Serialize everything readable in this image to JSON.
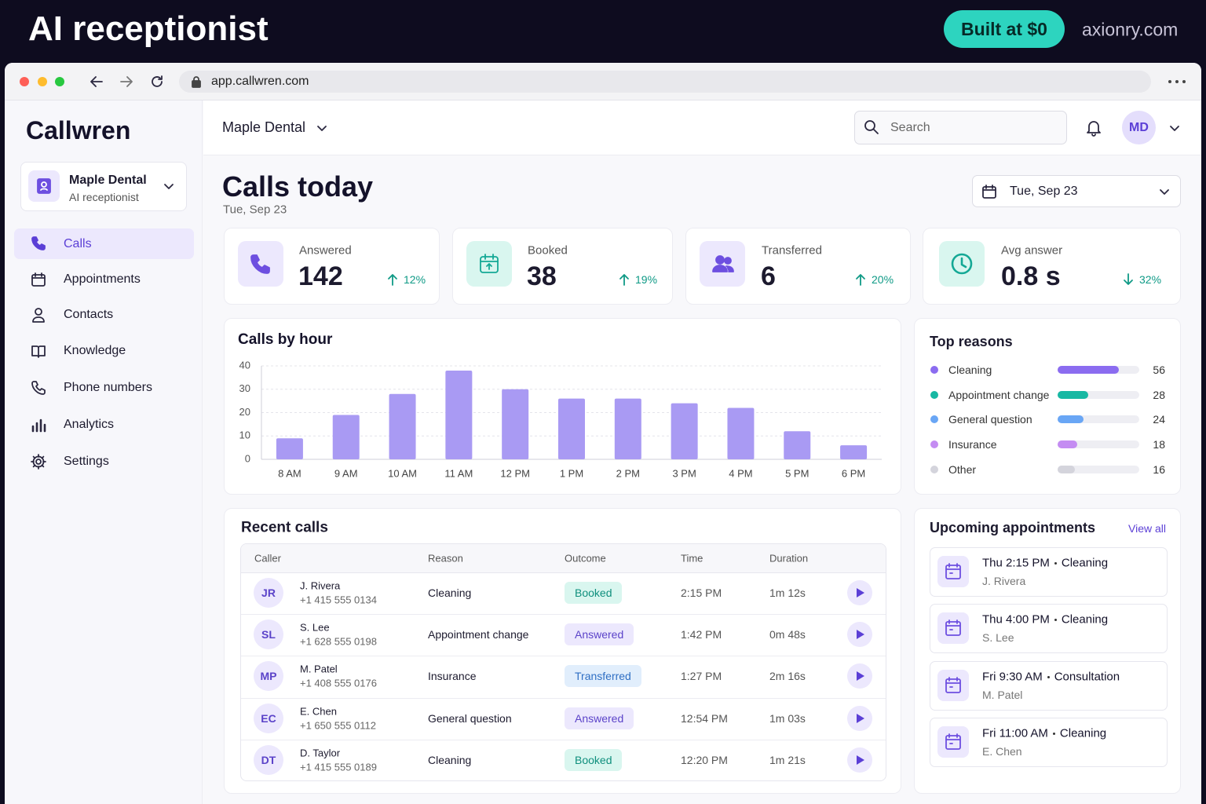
{
  "banner": {
    "title": "AI receptionist",
    "badge": "Built at $0",
    "site": "axionry.com"
  },
  "browser": {
    "url": "app.callwren.com"
  },
  "sidebar": {
    "brand": "Callwren",
    "workspace": {
      "name": "Maple Dental",
      "role": "AI receptionist"
    },
    "nav": [
      "Calls",
      "Appointments",
      "Contacts",
      "Knowledge",
      "Phone numbers",
      "Analytics",
      "Settings"
    ]
  },
  "topbar": {
    "account": "Maple Dental",
    "search_placeholder": "Search",
    "avatar": "MD"
  },
  "header": {
    "title": "Calls today",
    "date": "Tue, Sep 23",
    "date_picker": "Tue, Sep 23"
  },
  "stats": [
    {
      "label": "Answered",
      "value": "142",
      "change": "12%"
    },
    {
      "label": "Booked",
      "value": "38",
      "change": "19%"
    },
    {
      "label": "Transferred",
      "value": "6",
      "change": "20%"
    },
    {
      "label": "Avg answer",
      "value": "0.8 s",
      "change": "32%"
    }
  ],
  "chart_data": {
    "type": "bar",
    "title": "Calls by hour",
    "categories": [
      "8 AM",
      "9 AM",
      "10 AM",
      "11 AM",
      "12 PM",
      "1 PM",
      "2 PM",
      "3 PM",
      "4 PM",
      "5 PM",
      "6 PM"
    ],
    "values": [
      9,
      19,
      28,
      38,
      30,
      26,
      26,
      24,
      22,
      12,
      6
    ],
    "color": "#a99af3",
    "ylim": [
      0,
      40
    ],
    "yticks": [
      0,
      10,
      20,
      30,
      40
    ],
    "grid": true
  },
  "top_reasons": {
    "title": "Top reasons",
    "xlim": [
      0,
      75
    ],
    "items": [
      {
        "name": "Cleaning",
        "value": 56,
        "color": "#8b6cf0"
      },
      {
        "name": "Appointment change",
        "value": 28,
        "color": "#17b8a3"
      },
      {
        "name": "General question",
        "value": 24,
        "color": "#69a6f5"
      },
      {
        "name": "Insurance",
        "value": 18,
        "color": "#c48cf2"
      },
      {
        "name": "Other",
        "value": 16,
        "color": "#d4d4dc"
      }
    ]
  },
  "recent_calls": {
    "title": "Recent calls",
    "columns": [
      "Caller",
      "Reason",
      "Outcome",
      "Time",
      "Duration"
    ],
    "rows": [
      {
        "initials": "JR",
        "name": "J. Rivera",
        "phone": "+1 415 555 0134",
        "reason": "Cleaning",
        "outcome": "Booked",
        "tone": "teal",
        "time": "2:15 PM",
        "duration": "1m 12s"
      },
      {
        "initials": "SL",
        "name": "S. Lee",
        "phone": "+1 628 555 0198",
        "reason": "Appointment change",
        "outcome": "Answered",
        "tone": "purple",
        "time": "1:42 PM",
        "duration": "0m 48s"
      },
      {
        "initials": "MP",
        "name": "M. Patel",
        "phone": "+1 408 555 0176",
        "reason": "Insurance",
        "outcome": "Transferred",
        "tone": "blue",
        "time": "1:27 PM",
        "duration": "2m 16s"
      },
      {
        "initials": "EC",
        "name": "E. Chen",
        "phone": "+1 650 555 0112",
        "reason": "General question",
        "outcome": "Answered",
        "tone": "purple",
        "time": "12:54 PM",
        "duration": "1m 03s"
      },
      {
        "initials": "DT",
        "name": "D. Taylor",
        "phone": "+1 415 555 0189",
        "reason": "Cleaning",
        "outcome": "Booked",
        "tone": "teal",
        "time": "12:20 PM",
        "duration": "1m 21s"
      }
    ]
  },
  "upcoming": {
    "title": "Upcoming appointments",
    "link": "View all",
    "items": [
      {
        "when": "Thu 2:15 PM",
        "service": "Cleaning",
        "patient": "J. Rivera"
      },
      {
        "when": "Thu 4:00 PM",
        "service": "Cleaning",
        "patient": "S. Lee"
      },
      {
        "when": "Fri 9:30 AM",
        "service": "Consultation",
        "patient": "M. Patel"
      },
      {
        "when": "Fri 11:00 AM",
        "service": "Cleaning",
        "patient": "E. Chen"
      }
    ]
  }
}
